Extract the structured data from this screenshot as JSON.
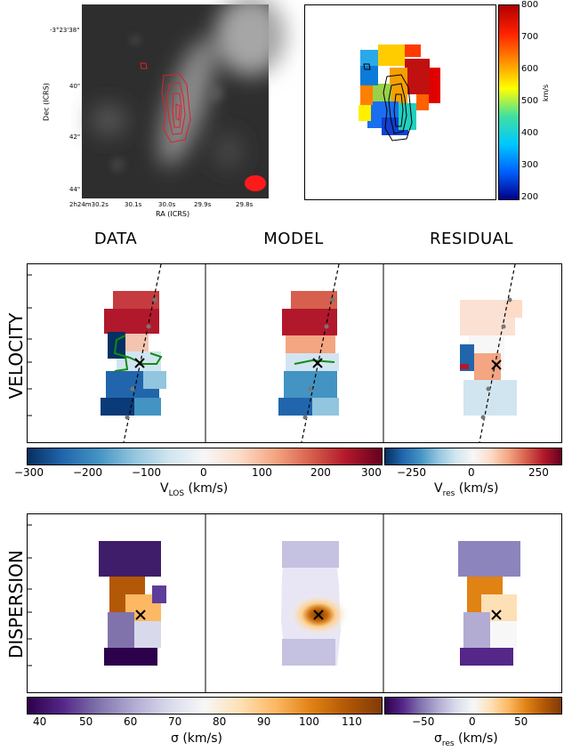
{
  "top_left": {
    "ra_label": "RA (ICRS)",
    "dec_label": "Dec (ICRS)",
    "ra_ticks": [
      "2h24m30.2s",
      "30.1s",
      "30.0s",
      "29.9s",
      "29.8s"
    ],
    "dec_ticks": [
      "-3°23'38\"",
      "40\"",
      "42\"",
      "44\""
    ]
  },
  "top_right": {
    "colorbar_ticks": [
      "800",
      "700",
      "600",
      "500",
      "400",
      "300",
      "200"
    ],
    "colorbar_unit": "km/s"
  },
  "columns": {
    "data": "DATA",
    "model": "MODEL",
    "residual": "RESIDUAL"
  },
  "rows": {
    "velocity": "VELOCITY",
    "dispersion": "DISPERSION"
  },
  "colorbars": {
    "vlos": {
      "ticks": [
        "−300",
        "−200",
        "−100",
        "0",
        "100",
        "200",
        "300"
      ],
      "label": "V",
      "sub": "LOS",
      "unit": " (km/s)"
    },
    "vres": {
      "ticks": [
        "−250",
        "0",
        "250"
      ],
      "label": "V",
      "sub": "res",
      "unit": " (km/s)"
    },
    "sigma": {
      "ticks": [
        "40",
        "50",
        "60",
        "70",
        "80",
        "90",
        "100",
        "110"
      ],
      "label": "σ (km/s)"
    },
    "sigma_res": {
      "ticks": [
        "−50",
        "0",
        "50"
      ],
      "label": "σ",
      "sub": "res",
      "unit": " (km/s)"
    }
  },
  "colors": {
    "diverging_blue": "#0b3a78",
    "diverging_red": "#7a0c1c",
    "purple": "#2f0b4e",
    "orange": "#7a3b03",
    "contour_red": "#e0202a",
    "contour_green": "#138a13"
  }
}
